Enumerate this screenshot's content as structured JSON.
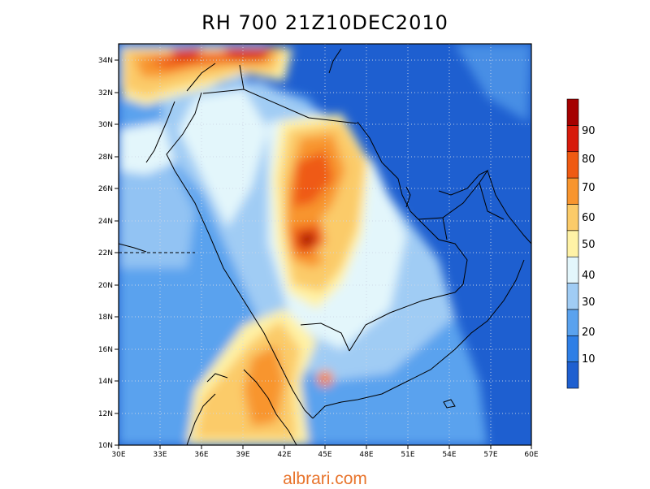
{
  "title": "RH 700 21Z10DEC2010",
  "watermark": "albrari.com",
  "map": {
    "lon_range": [
      30,
      60
    ],
    "lat_range": [
      10,
      35
    ],
    "lon_ticks": [
      "30E",
      "33E",
      "36E",
      "39E",
      "42E",
      "45E",
      "48E",
      "51E",
      "54E",
      "57E",
      "60E"
    ],
    "lat_ticks": [
      "10N",
      "12N",
      "14N",
      "16N",
      "18N",
      "20N",
      "22N",
      "24N",
      "26N",
      "28N",
      "30N",
      "32N",
      "34N"
    ]
  },
  "colorbar": {
    "labels": [
      "10",
      "20",
      "30",
      "40",
      "50",
      "60",
      "70",
      "80",
      "90"
    ],
    "colors": [
      "#1e5fd0",
      "#2e7fe6",
      "#5aa2ee",
      "#a0ccf4",
      "#e3f6fb",
      "#fff2a6",
      "#fbcb69",
      "#f8952e",
      "#ef5a12",
      "#d71a0b",
      "#a50000"
    ]
  }
}
